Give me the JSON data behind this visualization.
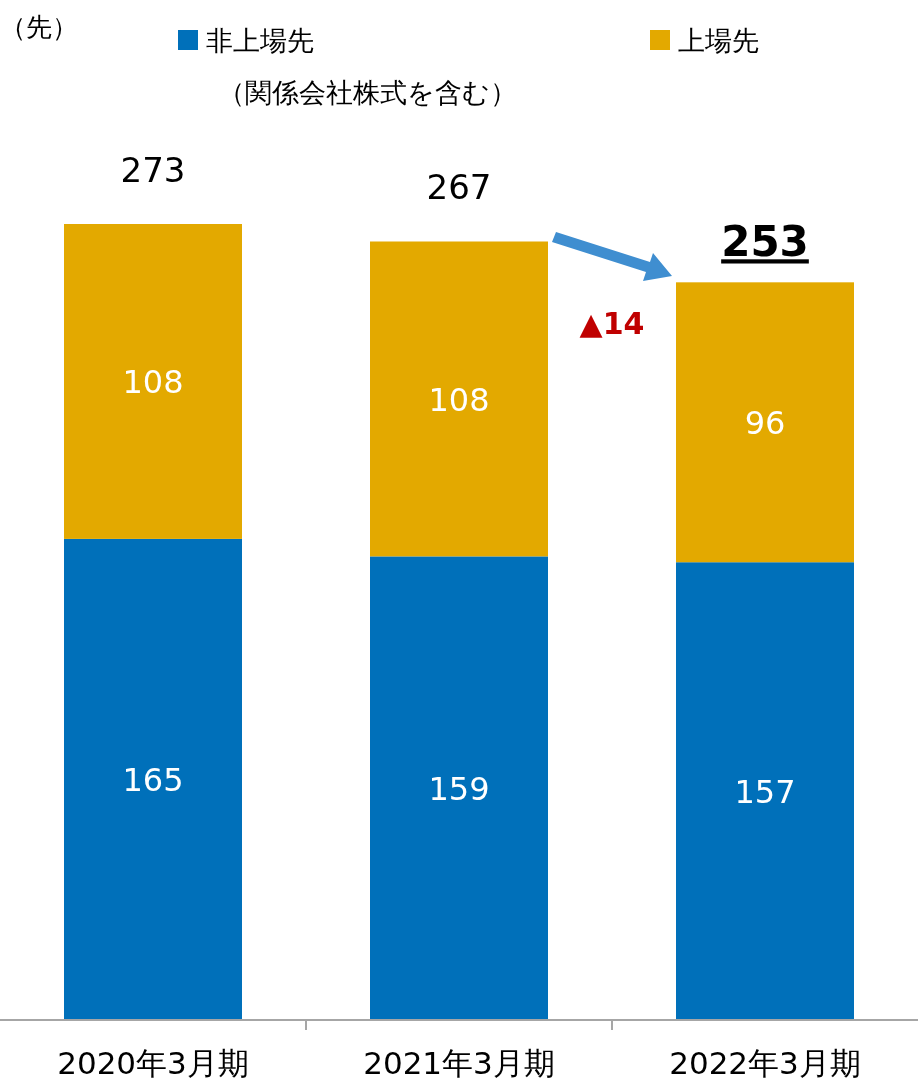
{
  "chart_data": {
    "type": "bar",
    "stacked": true,
    "legend": "top",
    "data_labels": true,
    "categories": [
      "2020年3月期",
      "2021年3月期",
      "2022年3月期"
    ],
    "series": [
      {
        "name": "非上場先（関係会社株式を含む）",
        "color": "#0070ba",
        "values": [
          165,
          159,
          157
        ]
      },
      {
        "name": "上場先",
        "color": "#e3a900",
        "values": [
          108,
          108,
          96
        ]
      }
    ],
    "totals": [
      "273",
      "267",
      "253"
    ],
    "annotations": [
      "▲14",
      "（先）"
    ]
  }
}
